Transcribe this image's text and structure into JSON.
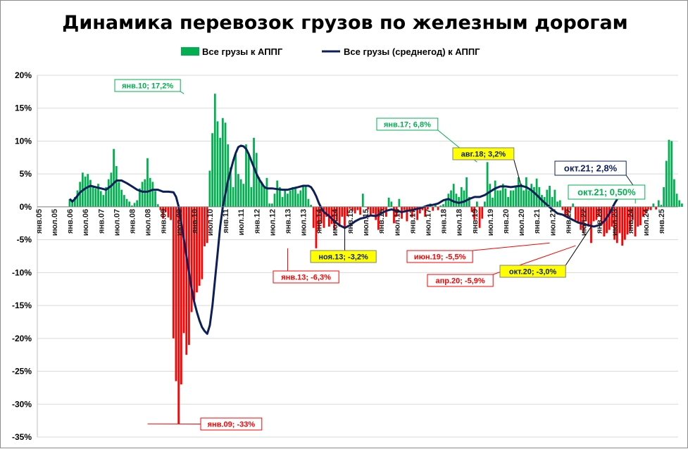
{
  "chart_data": {
    "type": "bar+line",
    "title": "Динамика перевозок грузов по железным дорогам",
    "legend": [
      {
        "name": "Все грузы к АППГ",
        "kind": "bar",
        "color": "#00b050"
      },
      {
        "name": "Все грузы (среднегод) к АППГ",
        "kind": "line",
        "color": "#0c1f5a"
      }
    ],
    "legend_position": "top-center",
    "positive_color": "#00b050",
    "negative_color": "#ff0000",
    "line_color": "#0c1f5a",
    "ylim": [
      -35,
      20
    ],
    "yticks": [
      20,
      15,
      10,
      5,
      0,
      -5,
      -10,
      -15,
      -20,
      -25,
      -30,
      -35
    ],
    "ytick_labels": [
      "20%",
      "15%",
      "10%",
      "5%",
      "0%",
      "-5%",
      "-10%",
      "-15%",
      "-20%",
      "-25%",
      "-30%",
      "-35%"
    ],
    "x_labels": [
      "янв.05",
      "июл.05",
      "янв.06",
      "июл.06",
      "янв.07",
      "июл.07",
      "янв.08",
      "июл.08",
      "янв.09",
      "июл.09",
      "янв.10",
      "июл.10",
      "янв.11",
      "июл.11",
      "янв.12",
      "июл.12",
      "янв.13",
      "июл.13",
      "янв.14",
      "июл.14",
      "янв.15",
      "июл.15",
      "янв.16",
      "июл.16",
      "янв.17",
      "июл.17",
      "янв.18",
      "июл.18",
      "янв.19",
      "июл.19",
      "янв.20",
      "июл.20",
      "янв.21",
      "июл.21",
      "янв.22",
      "июл.22",
      "янв.23",
      "июл.23",
      "янв.24",
      "июл.24",
      "янв.25"
    ],
    "months_total": 247,
    "bar_start_month": 12,
    "monthly_values": [
      1.2,
      0.8,
      1.5,
      2.5,
      3.8,
      5.2,
      4.6,
      5.0,
      4.1,
      3.2,
      2.8,
      3.5,
      2.4,
      1.8,
      3.0,
      4.2,
      5.2,
      8.8,
      6.2,
      3.8,
      2.6,
      1.8,
      1.2,
      0.8,
      0.2,
      0.6,
      1.0,
      2.8,
      3.8,
      4.2,
      7.4,
      4.4,
      3.8,
      2.4,
      0.4,
      -0.5,
      -1.8,
      -0.8,
      -1.6,
      -2.0,
      -20.0,
      -26.5,
      -33.0,
      -27.0,
      -19.2,
      -22.5,
      -21.0,
      -16.0,
      -14.2,
      -13.0,
      -12.0,
      -11.0,
      -6.0,
      -5.5,
      5.5,
      11.2,
      17.2,
      13.0,
      10.5,
      13.5,
      12.8,
      9.5,
      6.0,
      3.0,
      8.0,
      5.0,
      4.2,
      3.5,
      9.5,
      8.0,
      3.0,
      10.5,
      8.2,
      4.5,
      3.8,
      3.2,
      4.4,
      0.5,
      0.5,
      2.0,
      4.0,
      3.0,
      1.5,
      2.6,
      2.0,
      2.5,
      3.0,
      3.0,
      2.0,
      2.5,
      3.3,
      3.2,
      1.2,
      0.3,
      -3.2,
      -6.3,
      -3.5,
      -2.5,
      -3.2,
      -1.5,
      -3.0,
      -2.6,
      -3.5,
      -2.2,
      -3.0,
      -1.5,
      -3.2,
      -1.4,
      -0.3,
      -0.6,
      -1.0,
      -0.5,
      -1.2,
      2.0,
      0.0,
      -0.4,
      -1.2,
      -1.0,
      -2.0,
      -3.5,
      -0.8,
      -0.5,
      -1.5,
      1.4,
      0.8,
      -2.5,
      -1.5,
      1.2,
      -1.8,
      -0.5,
      -2.2,
      -0.6,
      -1.6,
      -0.5,
      -2.0,
      -1.0,
      -0.5,
      -1.5,
      -0.4,
      0.5,
      -0.6,
      0.3,
      -0.5,
      0.2,
      0.4,
      1.0,
      2.0,
      2.5,
      3.5,
      2.0,
      1.5,
      3.0,
      2.5,
      4.5,
      1.5,
      -0.8,
      -2.0,
      0.8,
      -3.2,
      -1.8,
      0.8,
      6.8,
      3.5,
      1.4,
      4.0,
      2.5,
      2.5,
      3.5,
      2.8,
      1.5,
      2.5,
      2.5,
      3.0,
      4.5,
      3.5,
      2.5,
      4.5,
      2.5,
      3.5,
      3.0,
      4.3,
      3.0,
      1.8,
      1.5,
      2.6,
      3.2,
      1.5,
      2.6,
      0.8,
      1.0,
      -0.5,
      -1.5,
      -1.5,
      -0.5,
      0.5,
      -2.0,
      -2.5,
      -3.5,
      -4.0,
      -2.2,
      -3.0,
      -5.5,
      -2.2,
      -2.0,
      -1.5,
      -2.8,
      -4.5,
      -4.0,
      -3.5,
      -3.0,
      -5.0,
      -5.5,
      -4.0,
      -5.9,
      -5.0,
      -4.2,
      -3.5,
      -2.0,
      -4.5,
      -3.0,
      -2.8,
      -1.5,
      -1.0,
      -0.4,
      -0.5,
      0.5,
      -0.4,
      1.0,
      0.3,
      3.0,
      7.0,
      10.2,
      10.0,
      4.2,
      2.0,
      1.0,
      0.5
    ],
    "avg_series": [
      [
        12,
        1.2
      ],
      [
        13,
        0.8
      ],
      [
        14,
        1.2
      ],
      [
        16,
        2.2
      ],
      [
        18,
        2.8
      ],
      [
        20,
        3.2
      ],
      [
        22,
        3.0
      ],
      [
        24,
        2.8
      ],
      [
        26,
        2.6
      ],
      [
        28,
        3.2
      ],
      [
        30,
        4.0
      ],
      [
        32,
        4.0
      ],
      [
        34,
        3.6
      ],
      [
        36,
        3.1
      ],
      [
        38,
        2.6
      ],
      [
        40,
        2.3
      ],
      [
        42,
        2.3
      ],
      [
        44,
        2.6
      ],
      [
        46,
        2.6
      ],
      [
        48,
        2.3
      ],
      [
        50,
        2.3
      ],
      [
        52,
        2.2
      ],
      [
        53,
        1.5
      ],
      [
        54,
        0.0
      ],
      [
        55,
        -2.5
      ],
      [
        56,
        -5.0
      ],
      [
        57,
        -7.5
      ],
      [
        58,
        -10.0
      ],
      [
        59,
        -12.5
      ],
      [
        60,
        -14.5
      ],
      [
        61,
        -16.0
      ],
      [
        62,
        -17.3
      ],
      [
        63,
        -18.3
      ],
      [
        64,
        -18.9
      ],
      [
        65,
        -19.3
      ],
      [
        66,
        -18.0
      ],
      [
        67,
        -15.0
      ],
      [
        68,
        -11.0
      ],
      [
        69,
        -7.0
      ],
      [
        70,
        -3.0
      ],
      [
        71,
        0.0
      ],
      [
        72,
        2.0
      ],
      [
        73,
        4.0
      ],
      [
        74,
        5.5
      ],
      [
        75,
        7.0
      ],
      [
        76,
        8.2
      ],
      [
        77,
        9.1
      ],
      [
        78,
        9.3
      ],
      [
        79,
        9.2
      ],
      [
        80,
        8.8
      ],
      [
        81,
        8.0
      ],
      [
        82,
        7.0
      ],
      [
        83,
        6.0
      ],
      [
        84,
        5.0
      ],
      [
        85,
        4.2
      ],
      [
        86,
        3.6
      ],
      [
        87,
        3.0
      ],
      [
        88,
        2.8
      ],
      [
        90,
        2.8
      ],
      [
        92,
        2.7
      ],
      [
        94,
        2.6
      ],
      [
        96,
        2.6
      ],
      [
        98,
        2.8
      ],
      [
        100,
        3.0
      ],
      [
        102,
        3.2
      ],
      [
        104,
        3.2
      ],
      [
        105,
        3.0
      ],
      [
        106,
        2.4
      ],
      [
        107,
        1.6
      ],
      [
        108,
        0.6
      ],
      [
        109,
        -0.2
      ],
      [
        110,
        -0.8
      ],
      [
        112,
        -1.4
      ],
      [
        114,
        -2.2
      ],
      [
        116,
        -2.8
      ],
      [
        118,
        -3.2
      ],
      [
        120,
        -2.8
      ],
      [
        122,
        -2.2
      ],
      [
        124,
        -1.8
      ],
      [
        126,
        -1.6
      ],
      [
        128,
        -1.3
      ],
      [
        130,
        -1.4
      ],
      [
        132,
        -1.0
      ],
      [
        134,
        -0.6
      ],
      [
        136,
        -0.4
      ],
      [
        138,
        -0.6
      ],
      [
        140,
        -0.8
      ],
      [
        142,
        -0.6
      ],
      [
        144,
        -0.5
      ],
      [
        146,
        -0.3
      ],
      [
        148,
        -0.1
      ],
      [
        150,
        0.2
      ],
      [
        152,
        0.3
      ],
      [
        154,
        0.5
      ],
      [
        156,
        1.0
      ],
      [
        158,
        1.2
      ],
      [
        160,
        0.8
      ],
      [
        162,
        0.6
      ],
      [
        164,
        0.8
      ],
      [
        166,
        1.2
      ],
      [
        168,
        1.5
      ],
      [
        170,
        1.5
      ],
      [
        172,
        1.8
      ],
      [
        174,
        2.3
      ],
      [
        176,
        2.8
      ],
      [
        178,
        3.1
      ],
      [
        180,
        3.1
      ],
      [
        182,
        3.0
      ],
      [
        184,
        3.1
      ],
      [
        186,
        3.2
      ],
      [
        188,
        3.0
      ],
      [
        190,
        2.5
      ],
      [
        192,
        1.8
      ],
      [
        194,
        1.0
      ],
      [
        196,
        0.3
      ],
      [
        198,
        -0.4
      ],
      [
        200,
        -1.0
      ],
      [
        202,
        -1.2
      ],
      [
        204,
        -1.6
      ],
      [
        206,
        -2.0
      ],
      [
        208,
        -2.4
      ],
      [
        210,
        -2.6
      ],
      [
        212,
        -2.8
      ],
      [
        214,
        -3.0
      ],
      [
        216,
        -2.8
      ],
      [
        218,
        -2.2
      ],
      [
        220,
        -1.0
      ],
      [
        222,
        0.5
      ],
      [
        224,
        1.8
      ],
      [
        226,
        2.5
      ],
      [
        228,
        2.8
      ],
      [
        230,
        2.8
      ]
    ],
    "annotations": [
      {
        "text": "янв.10; 17,2%",
        "month": 56,
        "value": 17.2,
        "color": "#00b050",
        "highlight": false
      },
      {
        "text": "янв.17; 6,8%",
        "month": 169,
        "value": 6.8,
        "color": "#00b050",
        "highlight": false
      },
      {
        "text": "авг.18; 3,2%",
        "month": 186,
        "value": 3.2,
        "color": "#0c1f5a",
        "highlight": true
      },
      {
        "text": "окт.21; 2,8%",
        "month": 230,
        "value": 2.8,
        "color": "#0c1f5a",
        "highlight": false
      },
      {
        "text": "окт.21; 0,50%",
        "month": 230,
        "value": 0.5,
        "color": "#00b050",
        "highlight": false
      },
      {
        "text": "янв.13; -6,3%",
        "month": 96,
        "value": -6.3,
        "color": "#ff0000",
        "highlight": false
      },
      {
        "text": "ноя.13; -3,2%",
        "month": 118,
        "value": -3.2,
        "color": "#0c1f5a",
        "highlight": true
      },
      {
        "text": "июн.19; -5,5%",
        "month": 197,
        "value": -5.5,
        "color": "#ff0000",
        "highlight": false
      },
      {
        "text": "апр.20; -5,9%",
        "month": 207,
        "value": -5.9,
        "color": "#ff0000",
        "highlight": false
      },
      {
        "text": "окт.20; -3,0%",
        "month": 213,
        "value": -3.0,
        "color": "#0c1f5a",
        "highlight": true
      },
      {
        "text": "янв.09; -33%",
        "month": 42,
        "value": -33.0,
        "color": "#ff0000",
        "highlight": false
      }
    ]
  }
}
